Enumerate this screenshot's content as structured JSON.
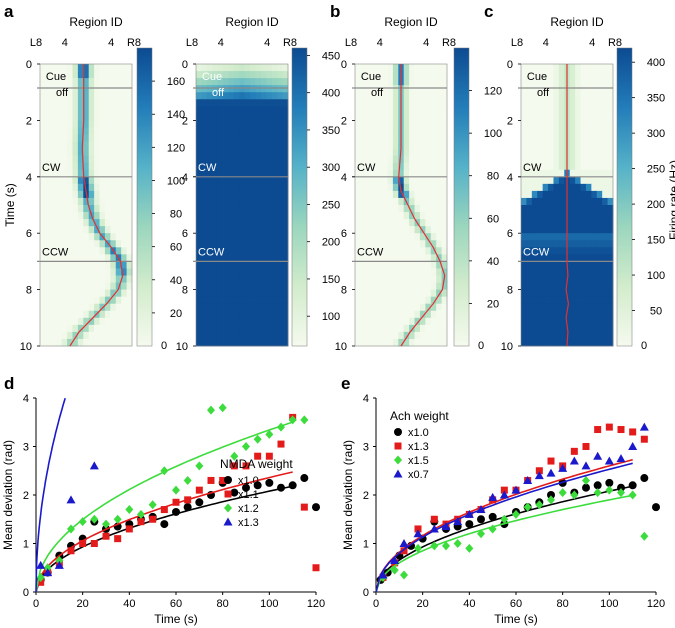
{
  "chart_data": [
    {
      "panel": "a",
      "type": "heatmap",
      "title": "Region ID",
      "ylabel": "Time (s)",
      "xticks": [
        "L8",
        "4",
        "4",
        "R8"
      ],
      "yticks": [
        "0",
        "2",
        "4",
        "6",
        "8",
        "10"
      ],
      "ylim": [
        0,
        10
      ],
      "events": [
        {
          "label": "Cue off",
          "time": 0.85
        },
        {
          "label": "CW",
          "time": 4.0
        },
        {
          "label": "CCW",
          "time": 7.0
        }
      ],
      "colorbar": {
        "ticks": [
          "20",
          "40",
          "60",
          "80",
          "100",
          "120",
          "140",
          "160"
        ],
        "range": [
          0,
          180
        ],
        "zero": "0"
      },
      "trace": [
        [
          0,
          -0.05
        ],
        [
          1,
          -0.05
        ],
        [
          2,
          -0.05
        ],
        [
          3,
          -0.08
        ],
        [
          4,
          -0.05
        ],
        [
          4.5,
          0.0
        ],
        [
          5,
          0.05
        ],
        [
          5.5,
          0.15
        ],
        [
          6,
          0.3
        ],
        [
          6.5,
          0.55
        ],
        [
          7,
          0.75
        ],
        [
          7.5,
          0.8
        ],
        [
          8,
          0.7
        ],
        [
          8.5,
          0.45
        ],
        [
          9,
          0.15
        ],
        [
          9.5,
          -0.15
        ],
        [
          10,
          -0.35
        ]
      ]
    },
    {
      "panel": "a2",
      "type": "heatmap",
      "title": "Region ID",
      "xticks": [
        "L8",
        "4",
        "4",
        "R8"
      ],
      "yticks": [
        "0",
        "2",
        "4",
        "6",
        "8",
        "10"
      ],
      "ylim": [
        0,
        10
      ],
      "events": [
        {
          "label": "Cue off",
          "time": 0.85
        },
        {
          "label": "CW",
          "time": 4.0
        },
        {
          "label": "CCW",
          "time": 7.0
        }
      ],
      "colorbar": {
        "ticks": [
          "100",
          "150",
          "200",
          "250",
          "300",
          "350",
          "400",
          "450"
        ],
        "range": [
          60,
          460
        ]
      }
    },
    {
      "panel": "b",
      "type": "heatmap",
      "title": "Region ID",
      "xticks": [
        "L8",
        "4",
        "4",
        "R8"
      ],
      "yticks": [
        "0",
        "2",
        "4",
        "6",
        "8",
        "10"
      ],
      "ylim": [
        0,
        10
      ],
      "events": [
        {
          "label": "Cue off",
          "time": 0.85
        },
        {
          "label": "CW",
          "time": 4.0
        },
        {
          "label": "CCW",
          "time": 7.0
        }
      ],
      "colorbar": {
        "ticks": [
          "20",
          "40",
          "60",
          "80",
          "100",
          "120"
        ],
        "range": [
          0,
          140
        ],
        "zero": "0"
      },
      "trace": [
        [
          0,
          0
        ],
        [
          1,
          0
        ],
        [
          2,
          0
        ],
        [
          3,
          0
        ],
        [
          4,
          -0.05
        ],
        [
          4.5,
          0.0
        ],
        [
          5,
          0.15
        ],
        [
          5.5,
          0.3
        ],
        [
          6,
          0.5
        ],
        [
          6.5,
          0.7
        ],
        [
          7,
          0.85
        ],
        [
          7.5,
          0.95
        ],
        [
          8,
          0.9
        ],
        [
          8.5,
          0.7
        ],
        [
          9,
          0.45
        ],
        [
          9.5,
          0.2
        ],
        [
          10,
          0.0
        ]
      ]
    },
    {
      "panel": "c",
      "type": "heatmap",
      "title": "Region ID",
      "xticks": [
        "L8",
        "4",
        "4",
        "R8"
      ],
      "yticks": [
        "0",
        "2",
        "4",
        "6",
        "8",
        "10"
      ],
      "ylim": [
        0,
        10
      ],
      "events": [
        {
          "label": "Cue off",
          "time": 0.85
        },
        {
          "label": "CW",
          "time": 4.0
        },
        {
          "label": "CCW",
          "time": 7.0
        }
      ],
      "colorbar": {
        "label": "Firing rate (Hz)",
        "ticks": [
          "50",
          "100",
          "150",
          "200",
          "250",
          "300",
          "350",
          "400"
        ],
        "range": [
          0,
          420
        ],
        "zero": "0"
      },
      "trace": [
        [
          0,
          0
        ],
        [
          7,
          0
        ],
        [
          7.5,
          0.02
        ],
        [
          8,
          -0.02
        ],
        [
          8.5,
          0.03
        ],
        [
          9,
          -0.02
        ],
        [
          9.5,
          0.02
        ],
        [
          10,
          0
        ]
      ]
    },
    {
      "panel": "d",
      "type": "scatter",
      "xlabel": "Time (s)",
      "ylabel": "Mean deviation (rad)",
      "xlim": [
        0,
        120
      ],
      "ylim": [
        0,
        4
      ],
      "xticks": [
        "0",
        "20",
        "40",
        "60",
        "80",
        "100",
        "120"
      ],
      "yticks": [
        "0",
        "1",
        "2",
        "3",
        "4"
      ],
      "legend_title": "NMDA weight",
      "series": [
        {
          "name": "x1.0",
          "color": "#000000",
          "marker": "circle",
          "points": [
            [
              2,
              0.25
            ],
            [
              5,
              0.4
            ],
            [
              10,
              0.75
            ],
            [
              15,
              0.95
            ],
            [
              20,
              1.1
            ],
            [
              25,
              1.45
            ],
            [
              30,
              1.3
            ],
            [
              35,
              1.35
            ],
            [
              40,
              1.4
            ],
            [
              45,
              1.5
            ],
            [
              50,
              1.55
            ],
            [
              55,
              1.4
            ],
            [
              60,
              1.65
            ],
            [
              65,
              1.75
            ],
            [
              70,
              1.85
            ],
            [
              75,
              2.0
            ],
            [
              80,
              2.25
            ],
            [
              85,
              2.05
            ],
            [
              90,
              2.15
            ],
            [
              95,
              2.2
            ],
            [
              100,
              2.25
            ],
            [
              105,
              2.15
            ],
            [
              110,
              2.2
            ],
            [
              115,
              2.35
            ],
            [
              120,
              1.75
            ]
          ],
          "fit_coef": 0.208
        },
        {
          "name": "x1.1",
          "color": "#e31b1b",
          "marker": "square",
          "points": [
            [
              2,
              0.2
            ],
            [
              5,
              0.4
            ],
            [
              10,
              0.6
            ],
            [
              15,
              0.85
            ],
            [
              20,
              1.0
            ],
            [
              25,
              1.0
            ],
            [
              30,
              1.15
            ],
            [
              35,
              1.1
            ],
            [
              40,
              1.3
            ],
            [
              45,
              1.45
            ],
            [
              50,
              1.5
            ],
            [
              55,
              1.7
            ],
            [
              60,
              1.85
            ],
            [
              65,
              1.9
            ],
            [
              70,
              2.1
            ],
            [
              75,
              2.3
            ],
            [
              80,
              2.3
            ],
            [
              85,
              2.6
            ],
            [
              90,
              2.6
            ],
            [
              95,
              2.8
            ],
            [
              100,
              2.8
            ],
            [
              105,
              3.05
            ],
            [
              110,
              3.6
            ],
            [
              115,
              1.75
            ],
            [
              120,
              0.5
            ]
          ],
          "fit_coef": 0.236
        },
        {
          "name": "x1.2",
          "color": "#3ddc3d",
          "marker": "diamond",
          "points": [
            [
              2,
              0.3
            ],
            [
              5,
              0.5
            ],
            [
              10,
              0.65
            ],
            [
              15,
              1.3
            ],
            [
              20,
              1.45
            ],
            [
              25,
              1.5
            ],
            [
              30,
              1.4
            ],
            [
              35,
              1.5
            ],
            [
              40,
              1.7
            ],
            [
              45,
              1.6
            ],
            [
              50,
              1.8
            ],
            [
              55,
              2.5
            ],
            [
              60,
              2.1
            ],
            [
              65,
              2.3
            ],
            [
              70,
              2.6
            ],
            [
              75,
              3.75
            ],
            [
              80,
              3.8
            ],
            [
              85,
              2.8
            ],
            [
              90,
              3.0
            ],
            [
              95,
              3.15
            ],
            [
              100,
              3.25
            ],
            [
              105,
              3.4
            ],
            [
              110,
              3.55
            ],
            [
              115,
              3.55
            ]
          ],
          "fit_coef": 0.334
        },
        {
          "name": "x1.3",
          "color": "#1a1acc",
          "marker": "triangle",
          "points": [
            [
              2,
              0.55
            ],
            [
              5,
              0.4
            ],
            [
              10,
              0.55
            ],
            [
              15,
              1.9
            ],
            [
              25,
              2.6
            ]
          ],
          "fit_coef": 1.13,
          "fit_max": 12.5
        }
      ]
    },
    {
      "panel": "e",
      "type": "scatter",
      "xlabel": "Time (s)",
      "ylabel": "Mean deviation (rad)",
      "xlim": [
        0,
        120
      ],
      "ylim": [
        0,
        4
      ],
      "xticks": [
        "0",
        "20",
        "40",
        "60",
        "80",
        "100",
        "120"
      ],
      "yticks": [
        "0",
        "1",
        "2",
        "3",
        "4"
      ],
      "legend_title": "Ach weight",
      "series": [
        {
          "name": "x1.0",
          "color": "#000000",
          "marker": "circle",
          "points": [
            [
              2,
              0.25
            ],
            [
              5,
              0.4
            ],
            [
              10,
              0.75
            ],
            [
              15,
              0.95
            ],
            [
              20,
              1.1
            ],
            [
              25,
              1.45
            ],
            [
              30,
              1.3
            ],
            [
              35,
              1.35
            ],
            [
              40,
              1.4
            ],
            [
              45,
              1.5
            ],
            [
              50,
              1.55
            ],
            [
              55,
              1.4
            ],
            [
              60,
              1.65
            ],
            [
              65,
              1.75
            ],
            [
              70,
              1.85
            ],
            [
              75,
              2.0
            ],
            [
              80,
              2.25
            ],
            [
              85,
              2.05
            ],
            [
              90,
              2.15
            ],
            [
              95,
              2.2
            ],
            [
              100,
              2.25
            ],
            [
              105,
              2.15
            ],
            [
              110,
              2.2
            ],
            [
              115,
              2.35
            ],
            [
              120,
              1.75
            ]
          ],
          "fit_coef": 0.208
        },
        {
          "name": "x1.3",
          "color": "#e31b1b",
          "marker": "square",
          "points": [
            [
              3,
              0.3
            ],
            [
              8,
              0.6
            ],
            [
              12,
              0.85
            ],
            [
              18,
              1.3
            ],
            [
              25,
              1.5
            ],
            [
              30,
              1.4
            ],
            [
              35,
              1.5
            ],
            [
              40,
              1.6
            ],
            [
              45,
              1.7
            ],
            [
              50,
              1.9
            ],
            [
              55,
              2.1
            ],
            [
              60,
              2.1
            ],
            [
              65,
              2.3
            ],
            [
              70,
              2.5
            ],
            [
              75,
              2.7
            ],
            [
              80,
              2.6
            ],
            [
              85,
              2.9
            ],
            [
              90,
              3.0
            ],
            [
              95,
              3.35
            ],
            [
              100,
              3.4
            ],
            [
              105,
              3.35
            ],
            [
              110,
              3.3
            ],
            [
              115,
              3.15
            ]
          ],
          "fit_coef": 0.26
        },
        {
          "name": "x1.5",
          "color": "#3ddc3d",
          "marker": "diamond",
          "points": [
            [
              3,
              0.3
            ],
            [
              8,
              0.45
            ],
            [
              12,
              0.35
            ],
            [
              18,
              0.9
            ],
            [
              25,
              0.95
            ],
            [
              30,
              0.95
            ],
            [
              35,
              1.0
            ],
            [
              40,
              0.9
            ],
            [
              45,
              1.2
            ],
            [
              50,
              1.3
            ],
            [
              55,
              1.5
            ],
            [
              60,
              1.6
            ],
            [
              65,
              1.75
            ],
            [
              70,
              1.8
            ],
            [
              75,
              1.9
            ],
            [
              80,
              2.05
            ],
            [
              85,
              2.0
            ],
            [
              90,
              2.3
            ],
            [
              95,
              2.05
            ],
            [
              100,
              2.1
            ],
            [
              105,
              2.05
            ],
            [
              110,
              2.0
            ],
            [
              115,
              1.15
            ]
          ],
          "fit_coef": 0.19
        },
        {
          "name": "x0.7",
          "color": "#1a1acc",
          "marker": "triangle",
          "points": [
            [
              3,
              0.35
            ],
            [
              8,
              0.65
            ],
            [
              12,
              1.0
            ],
            [
              18,
              1.2
            ],
            [
              25,
              1.3
            ],
            [
              30,
              1.35
            ],
            [
              35,
              1.45
            ],
            [
              40,
              1.6
            ],
            [
              45,
              1.7
            ],
            [
              50,
              1.95
            ],
            [
              55,
              2.0
            ],
            [
              60,
              2.1
            ],
            [
              65,
              2.3
            ],
            [
              70,
              2.4
            ],
            [
              75,
              2.45
            ],
            [
              80,
              2.55
            ],
            [
              85,
              2.7
            ],
            [
              90,
              2.6
            ],
            [
              95,
              2.8
            ],
            [
              100,
              2.7
            ],
            [
              105,
              2.75
            ],
            [
              110,
              3.0
            ],
            [
              115,
              3.4
            ]
          ],
          "fit_coef": 0.253
        }
      ]
    }
  ],
  "panel_letters": {
    "a": "a",
    "b": "b",
    "c": "c",
    "d": "d",
    "e": "e"
  },
  "cue_label": "Cue",
  "off_label": "off"
}
